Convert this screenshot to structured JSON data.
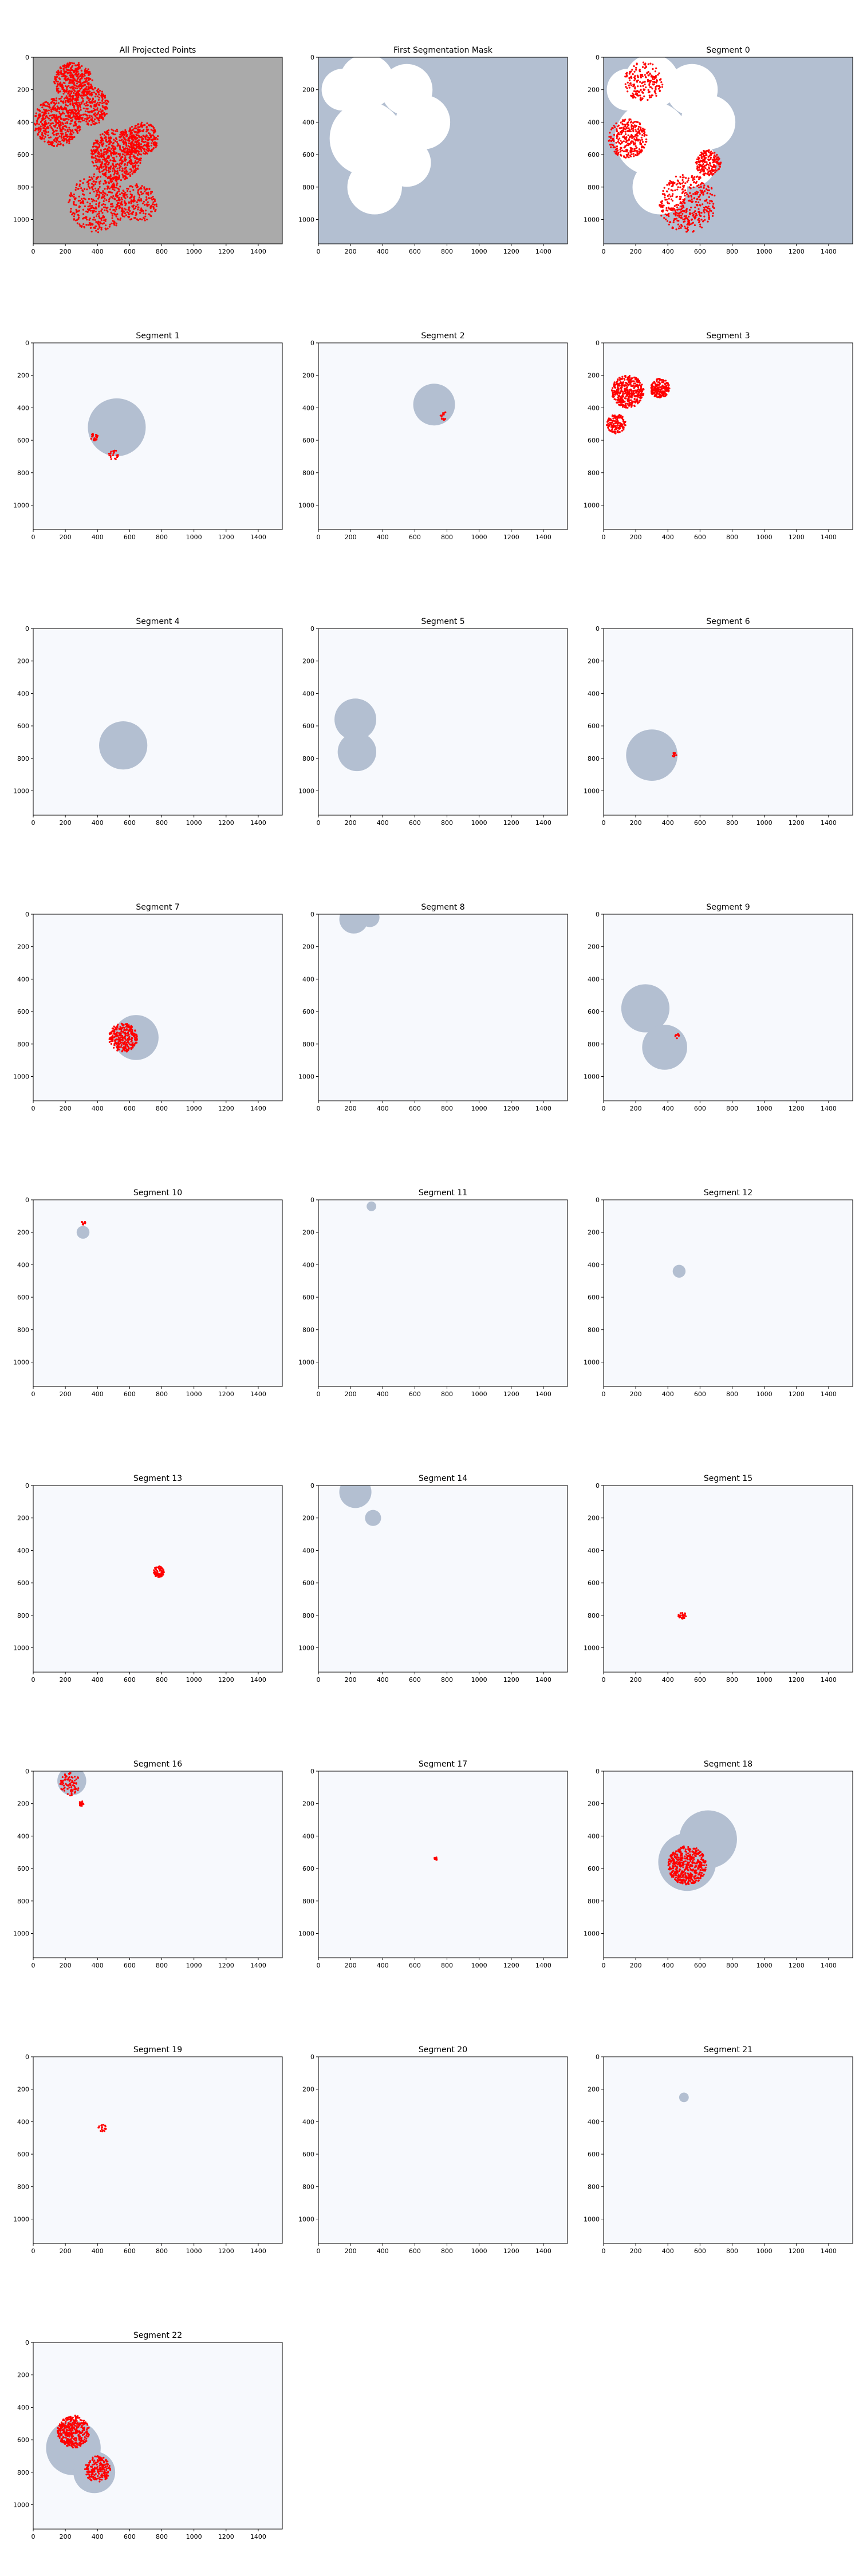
{
  "figure": {
    "panel_titles": [
      "All Projected Points",
      "First Segmentation Mask",
      "Segment 0",
      "Segment 1",
      "Segment 2",
      "Segment 3",
      "Segment 4",
      "Segment 5",
      "Segment 6",
      "Segment 7",
      "Segment 8",
      "Segment 9",
      "Segment 10",
      "Segment 11",
      "Segment 12",
      "Segment 13",
      "Segment 14",
      "Segment 15",
      "Segment 16",
      "Segment 17",
      "Segment 18",
      "Segment 19",
      "Segment 20",
      "Segment 21",
      "Segment 22"
    ]
  },
  "colors": {
    "mask": "#b3bfd1",
    "background": "#f7f9fd",
    "points": "#ff0000",
    "overview_bg": "#aaaaaa"
  },
  "chart_data": {
    "type": "scatter",
    "panels": [
      {
        "title": "All Projected Points"
      },
      {
        "title": "First Segmentation Mask"
      },
      {
        "title": "Segment 0"
      },
      {
        "title": "Segment 1"
      },
      {
        "title": "Segment 2"
      },
      {
        "title": "Segment 3"
      },
      {
        "title": "Segment 4"
      },
      {
        "title": "Segment 5"
      },
      {
        "title": "Segment 6"
      },
      {
        "title": "Segment 7"
      },
      {
        "title": "Segment 8"
      },
      {
        "title": "Segment 9"
      },
      {
        "title": "Segment 10"
      },
      {
        "title": "Segment 11"
      },
      {
        "title": "Segment 12"
      },
      {
        "title": "Segment 13"
      },
      {
        "title": "Segment 14"
      },
      {
        "title": "Segment 15"
      },
      {
        "title": "Segment 16"
      },
      {
        "title": "Segment 17"
      },
      {
        "title": "Segment 18"
      },
      {
        "title": "Segment 19"
      },
      {
        "title": "Segment 20"
      },
      {
        "title": "Segment 21"
      },
      {
        "title": "Segment 22"
      }
    ],
    "xlim": [
      0,
      1550
    ],
    "ylim": [
      1150,
      0
    ],
    "xticks": [
      0,
      200,
      400,
      600,
      800,
      1000,
      1200,
      1400
    ],
    "yticks": [
      0,
      200,
      400,
      600,
      800,
      1000
    ],
    "x_tick_labels": [
      "0",
      "200",
      "400",
      "600",
      "800",
      "1000",
      "1200",
      "1400"
    ],
    "y_tick_labels": [
      "0",
      "200",
      "400",
      "600",
      "800",
      "1000"
    ],
    "grid": false,
    "layout": "9 rows x 3 columns"
  }
}
